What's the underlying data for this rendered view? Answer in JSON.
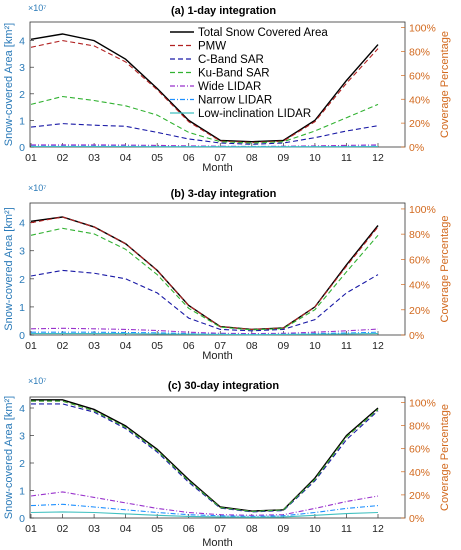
{
  "figure": {
    "colors": {
      "left_axis": "#2a7ab8",
      "right_axis": "#d2691e",
      "axis": "#333333",
      "grid": "#d0d0d0"
    }
  },
  "chart_data": [
    {
      "type": "line",
      "title": "(a) 1-day integration",
      "xlabel": "Month",
      "ylabel": "Snow-covered Area [km²]",
      "ylabel_right": "Coverage Percentage",
      "exponent": "×10⁷",
      "categories": [
        "01",
        "02",
        "03",
        "04",
        "05",
        "06",
        "07",
        "08",
        "09",
        "10",
        "11",
        "12"
      ],
      "ylim": [
        0,
        4.7
      ],
      "yticks": [
        "0",
        "1",
        "2",
        "3",
        "4"
      ],
      "yticks_right": [
        "0%",
        "20%",
        "40%",
        "60%",
        "80%",
        "100%"
      ],
      "legend": "top-right",
      "series": [
        {
          "name": "Total Snow Covered Area",
          "color": "#000000",
          "dash": "",
          "values": [
            4.05,
            4.25,
            4.0,
            3.3,
            2.2,
            1.0,
            0.25,
            0.2,
            0.25,
            1.0,
            2.5,
            3.85
          ]
        },
        {
          "name": "PMW",
          "color": "#b22222",
          "dash": "5,3",
          "values": [
            3.75,
            4.0,
            3.8,
            3.2,
            2.15,
            0.95,
            0.22,
            0.17,
            0.22,
            0.95,
            2.4,
            3.7
          ]
        },
        {
          "name": "C-Band SAR",
          "color": "#1a1aa6",
          "dash": "5,3",
          "values": [
            0.75,
            0.88,
            0.82,
            0.78,
            0.55,
            0.3,
            0.15,
            0.1,
            0.15,
            0.35,
            0.6,
            0.8
          ]
        },
        {
          "name": "Ku-Band SAR",
          "color": "#32b232",
          "dash": "5,3",
          "values": [
            1.6,
            1.9,
            1.75,
            1.55,
            1.2,
            0.55,
            0.2,
            0.15,
            0.2,
            0.6,
            1.1,
            1.6
          ]
        },
        {
          "name": "Wide LIDAR",
          "color": "#9932cc",
          "dash": "5,2,1,2",
          "values": [
            0.08,
            0.08,
            0.08,
            0.07,
            0.06,
            0.04,
            0.03,
            0.02,
            0.03,
            0.04,
            0.06,
            0.08
          ]
        },
        {
          "name": "Narrow LIDAR",
          "color": "#1e90ff",
          "dash": "5,2,1,2",
          "values": [
            0.03,
            0.03,
            0.03,
            0.03,
            0.02,
            0.02,
            0.01,
            0.01,
            0.01,
            0.02,
            0.02,
            0.03
          ]
        },
        {
          "name": "Low-inclination LIDAR",
          "color": "#40c0c0",
          "dash": "",
          "values": [
            0.02,
            0.02,
            0.02,
            0.02,
            0.01,
            0.01,
            0.01,
            0.01,
            0.01,
            0.01,
            0.01,
            0.02
          ]
        }
      ]
    },
    {
      "type": "line",
      "title": "(b) 3-day integration",
      "xlabel": "Month",
      "ylabel": "Snow-covered Area [km²]",
      "ylabel_right": "Coverage Percentage",
      "exponent": "×10⁷",
      "categories": [
        "01",
        "02",
        "03",
        "04",
        "05",
        "06",
        "07",
        "08",
        "09",
        "10",
        "11",
        "12"
      ],
      "ylim": [
        0,
        4.7
      ],
      "yticks": [
        "0",
        "1",
        "2",
        "3",
        "4"
      ],
      "yticks_right": [
        "0%",
        "20%",
        "40%",
        "60%",
        "80%",
        "100%"
      ],
      "series": [
        {
          "name": "Total Snow Covered Area",
          "color": "#000000",
          "dash": "",
          "values": [
            4.05,
            4.2,
            3.85,
            3.25,
            2.3,
            1.05,
            0.3,
            0.2,
            0.25,
            1.0,
            2.5,
            3.9
          ]
        },
        {
          "name": "PMW",
          "color": "#b22222",
          "dash": "5,3",
          "values": [
            4.0,
            4.2,
            3.85,
            3.25,
            2.3,
            1.05,
            0.3,
            0.2,
            0.25,
            1.0,
            2.45,
            3.85
          ]
        },
        {
          "name": "C-Band SAR",
          "color": "#1a1aa6",
          "dash": "5,3",
          "values": [
            2.1,
            2.3,
            2.2,
            2.0,
            1.5,
            0.6,
            0.2,
            0.15,
            0.2,
            0.55,
            1.5,
            2.15
          ]
        },
        {
          "name": "Ku-Band SAR",
          "color": "#32b232",
          "dash": "5,3",
          "values": [
            3.55,
            3.8,
            3.6,
            3.05,
            2.15,
            0.95,
            0.28,
            0.18,
            0.23,
            0.9,
            2.25,
            3.55
          ]
        },
        {
          "name": "Wide LIDAR",
          "color": "#9932cc",
          "dash": "5,2,1,2",
          "values": [
            0.22,
            0.24,
            0.22,
            0.2,
            0.16,
            0.1,
            0.06,
            0.05,
            0.06,
            0.1,
            0.15,
            0.21
          ]
        },
        {
          "name": "Narrow LIDAR",
          "color": "#1e90ff",
          "dash": "5,2,1,2",
          "values": [
            0.1,
            0.1,
            0.1,
            0.09,
            0.08,
            0.05,
            0.03,
            0.02,
            0.03,
            0.05,
            0.07,
            0.1
          ]
        },
        {
          "name": "Low-inclination LIDAR",
          "color": "#40c0c0",
          "dash": "",
          "values": [
            0.05,
            0.05,
            0.05,
            0.05,
            0.04,
            0.03,
            0.02,
            0.01,
            0.02,
            0.03,
            0.04,
            0.05
          ]
        }
      ]
    },
    {
      "type": "line",
      "title": "(c) 30-day integration",
      "xlabel": "Month",
      "ylabel": "Snow-covered Area [km²]",
      "ylabel_right": "Coverage Percentage",
      "exponent": "×10⁷",
      "categories": [
        "01",
        "02",
        "03",
        "04",
        "05",
        "06",
        "07",
        "08",
        "09",
        "10",
        "11",
        "12"
      ],
      "ylim": [
        0,
        4.4
      ],
      "yticks": [
        "0",
        "1",
        "2",
        "3",
        "4"
      ],
      "yticks_right": [
        "0%",
        "20%",
        "40%",
        "60%",
        "80%",
        "100%"
      ],
      "series": [
        {
          "name": "Total Snow Covered Area",
          "color": "#000000",
          "dash": "",
          "values": [
            4.3,
            4.3,
            3.95,
            3.35,
            2.5,
            1.4,
            0.4,
            0.25,
            0.3,
            1.45,
            3.0,
            4.0
          ]
        },
        {
          "name": "PMW",
          "color": "#b22222",
          "dash": "5,3",
          "values": [
            4.25,
            4.25,
            3.9,
            3.3,
            2.45,
            1.35,
            0.38,
            0.24,
            0.29,
            1.4,
            2.95,
            3.95
          ]
        },
        {
          "name": "C-Band SAR",
          "color": "#1a1aa6",
          "dash": "5,3",
          "values": [
            4.15,
            4.15,
            3.85,
            3.25,
            2.4,
            1.3,
            0.36,
            0.22,
            0.27,
            1.35,
            2.85,
            3.9
          ]
        },
        {
          "name": "Ku-Band SAR",
          "color": "#32b232",
          "dash": "5,3",
          "values": [
            4.25,
            4.25,
            3.9,
            3.3,
            2.45,
            1.35,
            0.38,
            0.24,
            0.29,
            1.4,
            2.95,
            3.95
          ]
        },
        {
          "name": "Wide LIDAR",
          "color": "#9932cc",
          "dash": "5,2,1,2",
          "values": [
            0.8,
            0.95,
            0.75,
            0.55,
            0.35,
            0.2,
            0.12,
            0.1,
            0.12,
            0.35,
            0.6,
            0.8
          ]
        },
        {
          "name": "Narrow LIDAR",
          "color": "#1e90ff",
          "dash": "5,2,1,2",
          "values": [
            0.45,
            0.5,
            0.4,
            0.3,
            0.2,
            0.12,
            0.08,
            0.06,
            0.08,
            0.2,
            0.35,
            0.45
          ]
        },
        {
          "name": "Low-inclination LIDAR",
          "color": "#40c0c0",
          "dash": "",
          "values": [
            0.2,
            0.22,
            0.2,
            0.15,
            0.1,
            0.06,
            0.04,
            0.03,
            0.04,
            0.1,
            0.16,
            0.2
          ]
        }
      ]
    }
  ]
}
